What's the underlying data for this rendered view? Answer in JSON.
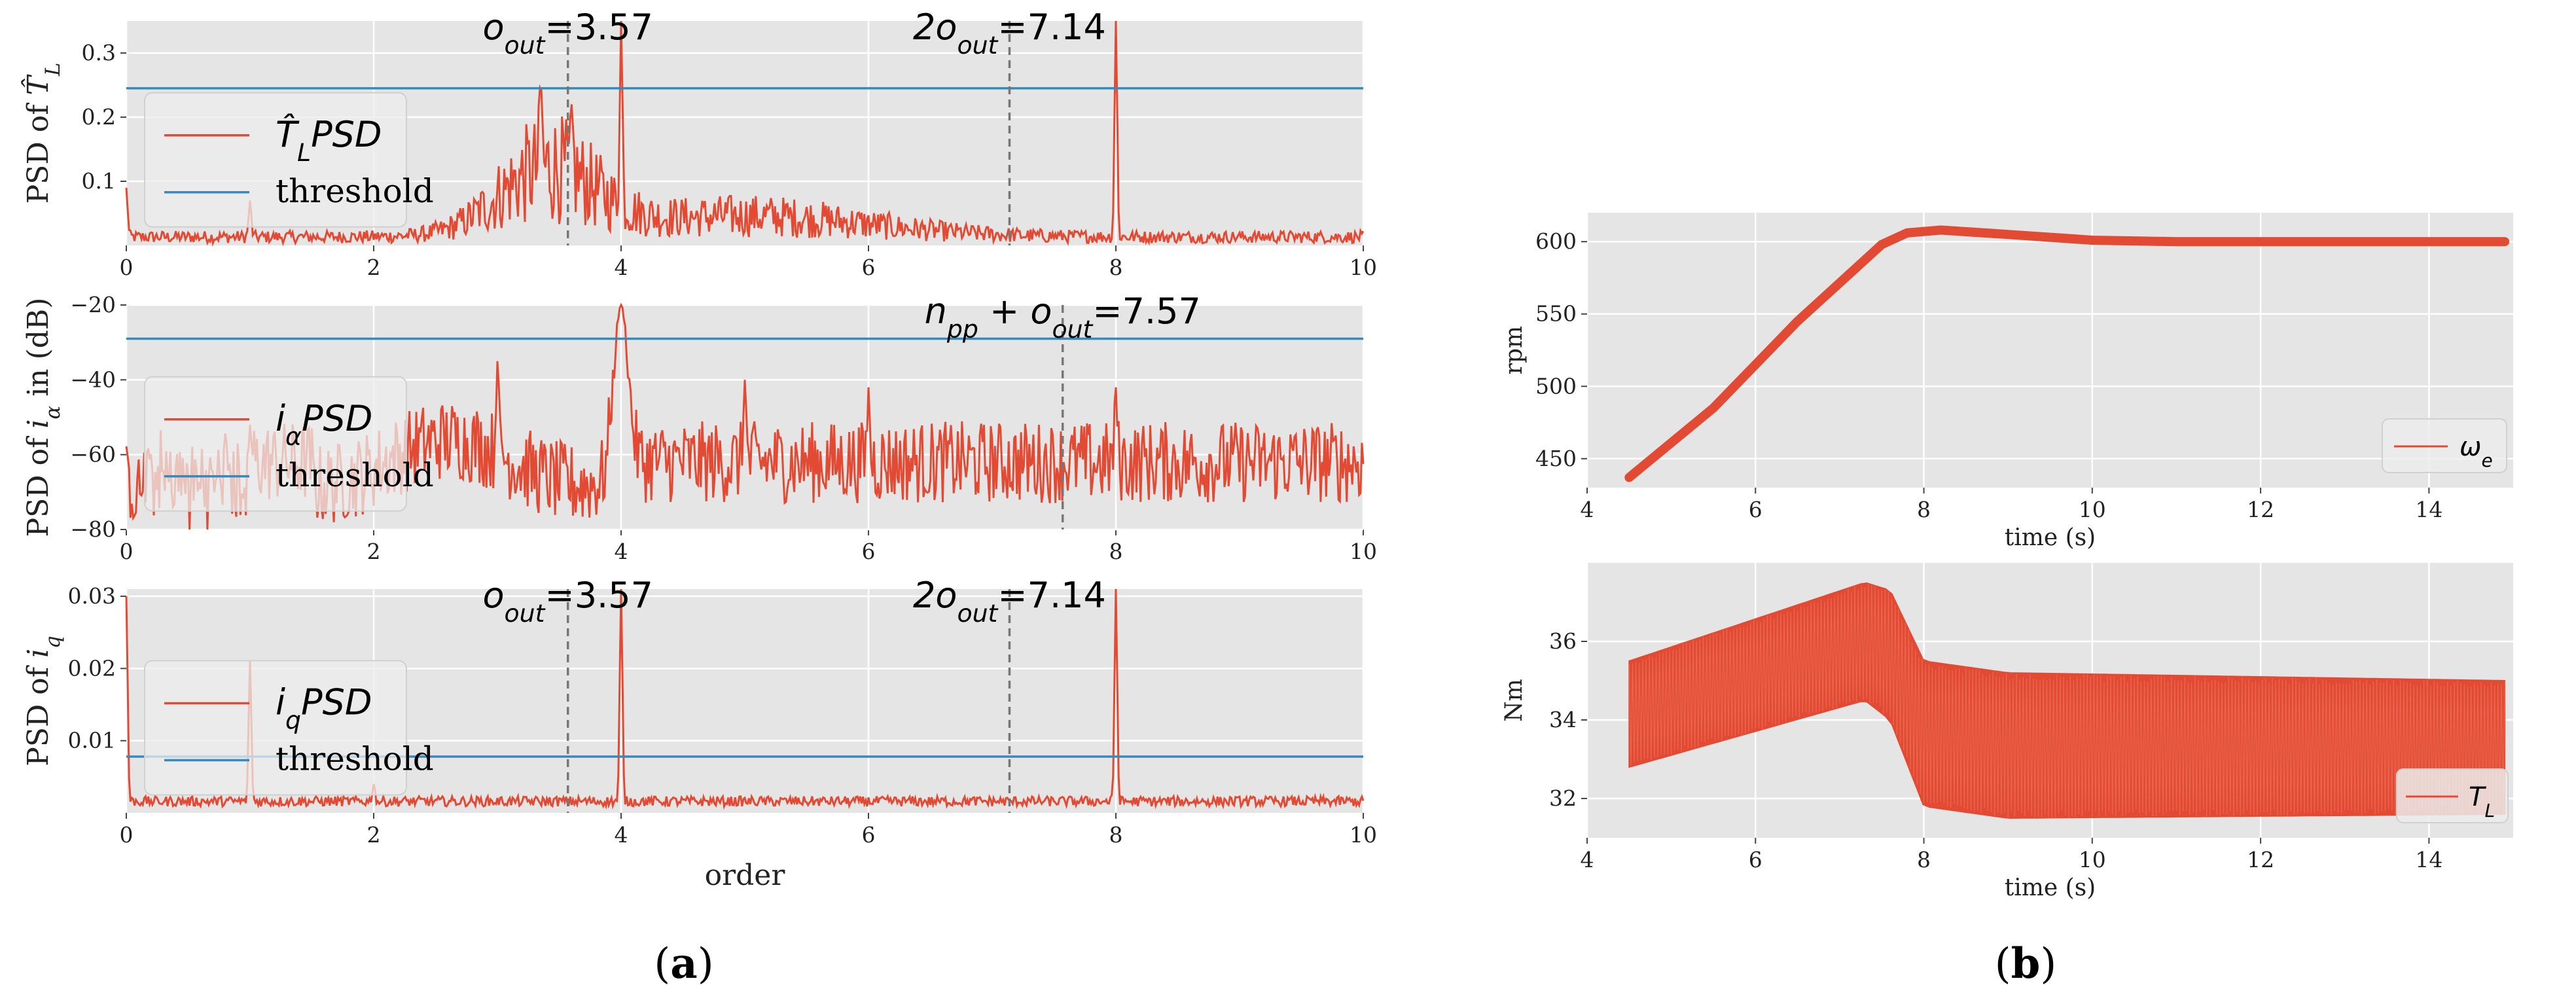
{
  "colors": {
    "series": "#E24A33",
    "threshold": "#348ABD",
    "panel_bg": "#E5E5E5",
    "grid": "#FFFFFF",
    "vline": "#777777"
  },
  "panel_labels": {
    "a": "(a)",
    "b": "(b)",
    "a_letter": "a",
    "b_letter": "b"
  },
  "chart_data": [
    {
      "type": "line",
      "id": "psd_TL",
      "ylabel": "PSD of T̂_L",
      "xlim": [
        0,
        10
      ],
      "ylim": [
        0,
        0.35
      ],
      "xticks": [
        "0",
        "2",
        "4",
        "6",
        "8",
        "10"
      ],
      "yticks": [
        "0.1",
        "0.2",
        "0.3"
      ],
      "threshold": 0.245,
      "vlines": [
        3.57,
        7.14
      ],
      "annotations": [
        {
          "x": 3.57,
          "text_main": "o",
          "text_sub": "out",
          "text_suffix": "=3.57"
        },
        {
          "x": 7.14,
          "text_main": "2o",
          "text_sub": "out",
          "text_suffix": "=7.14"
        }
      ],
      "peaks": [
        [
          4.0,
          0.35
        ],
        [
          8.0,
          0.35
        ],
        [
          1.0,
          0.07
        ],
        [
          0.0,
          0.09
        ],
        [
          3.35,
          0.26
        ],
        [
          3.6,
          0.22
        ]
      ],
      "legend": {
        "series_main": "T̂",
        "series_sub": "L",
        "series_suffix": "PSD",
        "threshold": "threshold",
        "position": "left"
      }
    },
    {
      "type": "line",
      "id": "psd_ialpha",
      "ylabel": "PSD of i_α in (dB)",
      "xlim": [
        0,
        10
      ],
      "ylim": [
        -80,
        -20
      ],
      "xticks": [
        "0",
        "2",
        "4",
        "6",
        "8",
        "10"
      ],
      "yticks": [
        "−80",
        "−60",
        "−40",
        "−20"
      ],
      "threshold": -29,
      "vlines": [
        7.57
      ],
      "annotations": [
        {
          "x": 7.57,
          "text_main": "n",
          "text_sub": "pp",
          "text_mid": " + o",
          "text_sub2": "out",
          "text_suffix": "=7.57"
        }
      ],
      "peaks": [
        [
          4.0,
          -20
        ],
        [
          3.0,
          -35
        ],
        [
          5.0,
          -40
        ],
        [
          6.0,
          -42
        ],
        [
          8.0,
          -42
        ],
        [
          1.0,
          -52
        ]
      ],
      "legend": {
        "series_main": "i",
        "series_sub": "α",
        "series_suffix": "PSD",
        "threshold": "threshold",
        "position": "left"
      }
    },
    {
      "type": "line",
      "id": "psd_iq",
      "ylabel": "PSD of i_q",
      "xlabel": "order",
      "xlim": [
        0,
        10
      ],
      "ylim": [
        0,
        0.031
      ],
      "xticks": [
        "0",
        "2",
        "4",
        "6",
        "8",
        "10"
      ],
      "yticks": [
        "0.01",
        "0.02",
        "0.03"
      ],
      "threshold": 0.0078,
      "vlines": [
        3.57,
        7.14
      ],
      "annotations": [
        {
          "x": 3.57,
          "text_main": "o",
          "text_sub": "out",
          "text_suffix": "=3.57"
        },
        {
          "x": 7.14,
          "text_main": "2o",
          "text_sub": "out",
          "text_suffix": "=7.14"
        }
      ],
      "peaks": [
        [
          4.0,
          0.031
        ],
        [
          8.0,
          0.031
        ],
        [
          1.0,
          0.021
        ],
        [
          0.0,
          0.03
        ],
        [
          2.0,
          0.004
        ]
      ],
      "legend": {
        "series_main": "i",
        "series_sub": "q",
        "series_suffix": "PSD",
        "threshold": "threshold",
        "position": "left"
      }
    },
    {
      "type": "line",
      "id": "speed",
      "ylabel": "rpm",
      "xlabel": "time (s)",
      "xlim": [
        4,
        15
      ],
      "ylim": [
        430,
        620
      ],
      "xticks": [
        "4",
        "6",
        "8",
        "10",
        "12",
        "14"
      ],
      "yticks": [
        "450",
        "500",
        "550",
        "600"
      ],
      "x": [
        4.5,
        5.5,
        6.5,
        7.5,
        7.8,
        8.2,
        9.0,
        10.0,
        11.0,
        12.0,
        13.0,
        14.0,
        14.9
      ],
      "y": [
        437,
        485,
        545,
        598,
        606,
        608,
        605,
        601,
        600,
        600,
        600,
        600,
        600
      ],
      "legend": {
        "series_main": "ω",
        "series_sub": "e",
        "position": "lower right"
      }
    },
    {
      "type": "line",
      "id": "torque",
      "ylabel": "Nm",
      "xlabel": "time (s)",
      "xlim": [
        4,
        15
      ],
      "ylim": [
        31,
        38
      ],
      "xticks": [
        "4",
        "6",
        "8",
        "10",
        "12",
        "14"
      ],
      "yticks": [
        "32",
        "34",
        "36"
      ],
      "upper": [
        [
          4.5,
          35.5
        ],
        [
          7.3,
          37.5
        ],
        [
          7.6,
          37.3
        ],
        [
          8.0,
          35.5
        ],
        [
          9.0,
          35.2
        ],
        [
          14.9,
          35.0
        ]
      ],
      "lower": [
        [
          4.5,
          32.8
        ],
        [
          7.3,
          34.5
        ],
        [
          7.6,
          34.0
        ],
        [
          8.0,
          31.8
        ],
        [
          9.0,
          31.5
        ],
        [
          14.9,
          31.6
        ]
      ],
      "legend": {
        "series_main": "T",
        "series_sub": "L",
        "position": "lower right"
      }
    }
  ]
}
